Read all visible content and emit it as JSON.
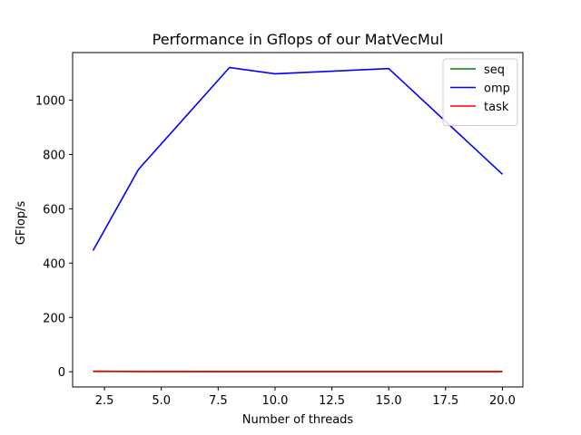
{
  "chart_data": {
    "type": "line",
    "title": "Performance in Gflops of our MatVecMul",
    "xlabel": "Number of threads",
    "ylabel": "GFlop/s",
    "xlim": [
      1.1,
      20.9
    ],
    "ylim": [
      -56,
      1175
    ],
    "x": [
      2,
      4,
      8,
      10,
      15,
      20
    ],
    "xticks": [
      2.5,
      5.0,
      7.5,
      10.0,
      12.5,
      15.0,
      17.5,
      20.0
    ],
    "xtick_labels": [
      "2.5",
      "5.0",
      "7.5",
      "10.0",
      "12.5",
      "15.0",
      "17.5",
      "20.0"
    ],
    "yticks": [
      0,
      200,
      400,
      600,
      800,
      1000
    ],
    "ytick_labels": [
      "0",
      "200",
      "400",
      "600",
      "800",
      "1000"
    ],
    "grid": false,
    "legend_position": "top-right",
    "series": [
      {
        "name": "seq",
        "color": "#008000",
        "values": [
          1,
          1,
          1,
          1,
          1,
          1
        ]
      },
      {
        "name": "omp",
        "color": "#0000ff",
        "values": [
          446,
          745,
          1120,
          1097,
          1116,
          727
        ]
      },
      {
        "name": "task",
        "color": "#ff0000",
        "values": [
          2,
          1,
          0,
          0,
          0,
          0
        ]
      }
    ]
  }
}
